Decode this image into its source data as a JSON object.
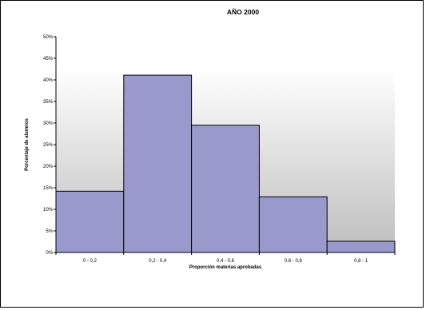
{
  "chart_data": {
    "type": "bar",
    "title": "AÑO 2000",
    "xlabel": "Proporción materias aprobadas",
    "ylabel": "Porcentaje de alumnos",
    "categories": [
      "0 - 0,2",
      "0,2 - 0,4",
      "0,4 - 0,6",
      "0,6 - 0,8",
      "0,8 - 1"
    ],
    "values": [
      14.2,
      41.1,
      29.5,
      12.9,
      2.6
    ],
    "ylim": [
      0,
      50
    ],
    "yticks": [
      "0%",
      "5%",
      "10%",
      "15%",
      "20%",
      "25%",
      "30%",
      "35%",
      "40%",
      "45%",
      "50%"
    ],
    "ytick_values": [
      0,
      5,
      10,
      15,
      20,
      25,
      30,
      35,
      40,
      45,
      50
    ],
    "grid": false,
    "legend": "none",
    "bar_color": "#9999cc",
    "bar_edge_color": "#000000",
    "plot_background": "gradient white-to-gray"
  }
}
